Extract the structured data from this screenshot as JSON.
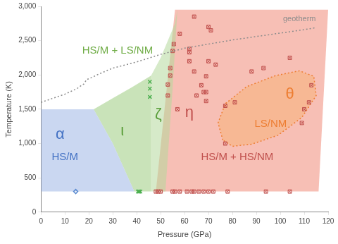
{
  "chart_data": {
    "type": "scatter",
    "x_label": "Pressure (GPa)",
    "y_label": "Temperature (K)",
    "xlim": [
      0,
      120
    ],
    "xticks": [
      0,
      10,
      20,
      30,
      40,
      50,
      60,
      70,
      80,
      90,
      100,
      110,
      120
    ],
    "ylim": [
      0,
      3000
    ],
    "yticks": [
      0,
      500,
      1000,
      1500,
      2000,
      2500,
      3000
    ],
    "grid": false,
    "regions": [
      {
        "color": "#f08a78",
        "points": [
          [
            48,
            300
          ],
          [
            56,
            2950
          ],
          [
            120,
            2950
          ],
          [
            116,
            300
          ]
        ]
      },
      {
        "color": "#b5d99c",
        "points": [
          [
            46,
            300
          ],
          [
            46,
            1990
          ],
          [
            50,
            2250
          ],
          [
            53,
            2500
          ],
          [
            56,
            2750
          ],
          [
            57,
            2950
          ],
          [
            55,
            1800
          ],
          [
            52,
            300
          ]
        ]
      },
      {
        "color": "#9dcc80",
        "points": [
          [
            39,
            300
          ],
          [
            30,
            1000
          ],
          [
            22,
            1500
          ],
          [
            30,
            1660
          ],
          [
            38,
            1820
          ],
          [
            46,
            1990
          ],
          [
            46,
            300
          ]
        ]
      },
      {
        "color": "#9fb6e6",
        "points": [
          [
            0,
            300
          ],
          [
            0,
            1500
          ],
          [
            22,
            1500
          ],
          [
            30,
            1000
          ],
          [
            39,
            300
          ]
        ]
      },
      {
        "color": "#f7b27a",
        "line_style": "dotted",
        "points": [
          [
            76,
            1050
          ],
          [
            74,
            1300
          ],
          [
            77,
            1580
          ],
          [
            86,
            1830
          ],
          [
            98,
            1990
          ],
          [
            108,
            2060
          ],
          [
            114,
            1980
          ],
          [
            115,
            1700
          ],
          [
            109,
            1380
          ],
          [
            99,
            1120
          ],
          [
            88,
            990
          ],
          [
            80,
            960
          ]
        ]
      }
    ],
    "series": [
      {
        "type": "line",
        "color": "#8c8c8c",
        "line_style": "dotted",
        "x": [
          0,
          5,
          10,
          15,
          17,
          18,
          19,
          21,
          24,
          30,
          40,
          50,
          60,
          70,
          80,
          90,
          100,
          110,
          115
        ],
        "values": [
          1600,
          1660,
          1720,
          1800,
          1850,
          1870,
          1930,
          1960,
          2010,
          2100,
          2190,
          2300,
          2390,
          2450,
          2510,
          2560,
          2610,
          2660,
          2690
        ]
      },
      {
        "type": "scatter",
        "color": "#5b8bd0",
        "marker": "diamond",
        "x": [
          14.5
        ],
        "values": [
          300
        ]
      },
      {
        "type": "scatter",
        "color": "#4caf50",
        "marker": "x",
        "x": [
          40.5,
          41,
          41.5,
          45.5,
          45.5,
          45.5
        ],
        "values": [
          300,
          300,
          300,
          1900,
          1800,
          1680
        ]
      },
      {
        "type": "scatter",
        "color": "#c0504d",
        "marker": "square_x",
        "x": [
          48,
          49,
          50,
          55,
          56,
          58,
          61,
          63,
          64,
          66,
          68,
          70,
          72,
          78,
          94,
          104,
          53,
          53,
          54,
          54,
          55,
          55.5,
          58,
          57,
          62,
          62,
          62,
          64,
          65,
          64,
          70,
          71,
          67,
          68,
          69,
          69,
          69,
          70,
          73,
          77,
          77,
          81,
          88,
          93,
          104,
          109,
          110,
          112,
          113
        ],
        "values": [
          300,
          300,
          300,
          300,
          300,
          300,
          300,
          300,
          300,
          300,
          300,
          300,
          300,
          300,
          300,
          300,
          1700,
          1860,
          1990,
          2100,
          2350,
          2450,
          2600,
          1500,
          2200,
          2330,
          2380,
          2850,
          1700,
          2050,
          2700,
          2650,
          1850,
          1750,
          1750,
          1620,
          1980,
          2200,
          2150,
          1000,
          1550,
          1600,
          2050,
          2100,
          2250,
          1300,
          1500,
          1600,
          1850
        ]
      }
    ],
    "annotations": [
      {
        "text": "α",
        "x": 8,
        "y": 1130,
        "color": "#4472c4"
      },
      {
        "text": "HS/M",
        "x": 10,
        "y": 800,
        "color": "#4472c4"
      },
      {
        "text": "ι",
        "x": 34,
        "y": 1180,
        "color": "#5a9e3a"
      },
      {
        "text": "ζ",
        "x": 49,
        "y": 1420,
        "color": "#5a9e3a"
      },
      {
        "text": "η",
        "x": 62,
        "y": 1450,
        "color": "#c0504d"
      },
      {
        "text": "θ",
        "x": 104,
        "y": 1720,
        "color": "#ed7d31"
      },
      {
        "text": "LS/NM",
        "x": 96,
        "y": 1280,
        "color": "#ed7d31"
      },
      {
        "text": "HS/M + LS/NM",
        "x": 32,
        "y": 2350,
        "color": "#70ad47"
      },
      {
        "text": "HS/M + HS/NM",
        "x": 82,
        "y": 800,
        "color": "#c0504d"
      },
      {
        "text": "geotherm",
        "x": 108,
        "y": 2820,
        "color": "#8c8c8c"
      }
    ]
  }
}
